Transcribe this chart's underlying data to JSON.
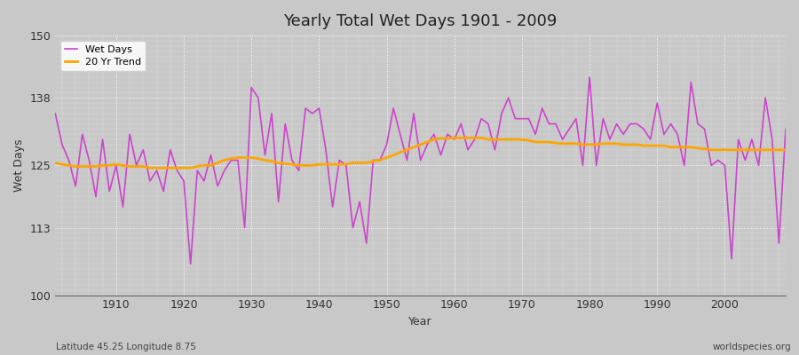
{
  "title": "Yearly Total Wet Days 1901 - 2009",
  "xlabel": "Year",
  "ylabel": "Wet Days",
  "subtitle": "Latitude 45.25 Longitude 8.75",
  "watermark": "worldspecies.org",
  "ylim": [
    100,
    150
  ],
  "yticks": [
    100,
    113,
    125,
    138,
    150
  ],
  "xlim": [
    1901,
    2009
  ],
  "xticks": [
    1910,
    1920,
    1930,
    1940,
    1950,
    1960,
    1970,
    1980,
    1990,
    2000
  ],
  "wet_days_color": "#CC44CC",
  "trend_color": "#FFA500",
  "background_color": "#C8C8C8",
  "plot_bg_color": "#C8C8C8",
  "grid_color": "#FFFFFF",
  "wet_days": {
    "1901": 135,
    "1902": 129,
    "1903": 126,
    "1904": 121,
    "1905": 131,
    "1906": 126,
    "1907": 119,
    "1908": 130,
    "1909": 120,
    "1910": 125,
    "1911": 117,
    "1912": 131,
    "1913": 125,
    "1914": 128,
    "1915": 122,
    "1916": 124,
    "1917": 120,
    "1918": 128,
    "1919": 124,
    "1920": 122,
    "1921": 106,
    "1922": 124,
    "1923": 122,
    "1924": 127,
    "1925": 121,
    "1926": 124,
    "1927": 126,
    "1928": 126,
    "1929": 113,
    "1930": 140,
    "1931": 138,
    "1932": 127,
    "1933": 135,
    "1934": 118,
    "1935": 133,
    "1936": 126,
    "1937": 124,
    "1938": 136,
    "1939": 135,
    "1940": 136,
    "1941": 128,
    "1942": 117,
    "1943": 126,
    "1944": 125,
    "1945": 113,
    "1946": 118,
    "1947": 110,
    "1948": 126,
    "1949": 126,
    "1950": 129,
    "1951": 136,
    "1952": 131,
    "1953": 126,
    "1954": 135,
    "1955": 126,
    "1956": 129,
    "1957": 131,
    "1958": 127,
    "1959": 131,
    "1960": 130,
    "1961": 133,
    "1962": 128,
    "1963": 130,
    "1964": 134,
    "1965": 133,
    "1966": 128,
    "1967": 135,
    "1968": 138,
    "1969": 134,
    "1970": 134,
    "1971": 134,
    "1972": 131,
    "1973": 136,
    "1974": 133,
    "1975": 133,
    "1976": 130,
    "1977": 132,
    "1978": 134,
    "1979": 125,
    "1980": 142,
    "1981": 125,
    "1982": 134,
    "1983": 130,
    "1984": 133,
    "1985": 131,
    "1986": 133,
    "1987": 133,
    "1988": 132,
    "1989": 130,
    "1990": 137,
    "1991": 131,
    "1992": 133,
    "1993": 131,
    "1994": 125,
    "1995": 141,
    "1996": 133,
    "1997": 132,
    "1998": 125,
    "1999": 126,
    "2000": 125,
    "2001": 107,
    "2002": 130,
    "2003": 126,
    "2004": 130,
    "2005": 125,
    "2006": 138,
    "2007": 130,
    "2008": 110,
    "2009": 132
  },
  "trend_20yr": {
    "1901": 125.5,
    "1902": 125.2,
    "1903": 125.0,
    "1904": 124.8,
    "1905": 124.8,
    "1906": 124.8,
    "1907": 124.8,
    "1908": 125.0,
    "1909": 125.0,
    "1910": 125.2,
    "1911": 125.0,
    "1912": 124.8,
    "1913": 124.8,
    "1914": 124.8,
    "1915": 124.5,
    "1916": 124.5,
    "1917": 124.5,
    "1918": 124.5,
    "1919": 124.5,
    "1920": 124.5,
    "1921": 124.5,
    "1922": 124.8,
    "1923": 125.0,
    "1924": 125.0,
    "1925": 125.5,
    "1926": 126.0,
    "1927": 126.3,
    "1928": 126.5,
    "1929": 126.5,
    "1930": 126.5,
    "1931": 126.3,
    "1932": 126.0,
    "1933": 125.8,
    "1934": 125.5,
    "1935": 125.3,
    "1936": 125.2,
    "1937": 125.0,
    "1938": 125.0,
    "1939": 125.0,
    "1940": 125.2,
    "1941": 125.2,
    "1942": 125.2,
    "1943": 125.2,
    "1944": 125.2,
    "1945": 125.5,
    "1946": 125.5,
    "1947": 125.5,
    "1948": 125.8,
    "1949": 126.0,
    "1950": 126.5,
    "1951": 127.0,
    "1952": 127.5,
    "1953": 128.0,
    "1954": 128.5,
    "1955": 129.0,
    "1956": 129.5,
    "1957": 130.0,
    "1958": 130.2,
    "1959": 130.2,
    "1960": 130.3,
    "1961": 130.3,
    "1962": 130.3,
    "1963": 130.3,
    "1964": 130.3,
    "1965": 130.0,
    "1966": 130.0,
    "1967": 130.0,
    "1968": 130.0,
    "1969": 130.0,
    "1970": 130.0,
    "1971": 129.8,
    "1972": 129.5,
    "1973": 129.5,
    "1974": 129.5,
    "1975": 129.3,
    "1976": 129.2,
    "1977": 129.2,
    "1978": 129.2,
    "1979": 129.0,
    "1980": 129.0,
    "1981": 129.0,
    "1982": 129.2,
    "1983": 129.2,
    "1984": 129.2,
    "1985": 129.0,
    "1986": 129.0,
    "1987": 129.0,
    "1988": 128.8,
    "1989": 128.8,
    "1990": 128.8,
    "1991": 128.8,
    "1992": 128.5,
    "1993": 128.5,
    "1994": 128.5,
    "1995": 128.5,
    "1996": 128.3,
    "1997": 128.2,
    "1998": 128.0,
    "1999": 128.0,
    "2000": 128.0,
    "2001": 128.0,
    "2002": 128.0,
    "2003": 128.0,
    "2004": 128.0,
    "2005": 128.0,
    "2006": 128.0,
    "2007": 128.0,
    "2008": 128.0,
    "2009": 128.0
  }
}
